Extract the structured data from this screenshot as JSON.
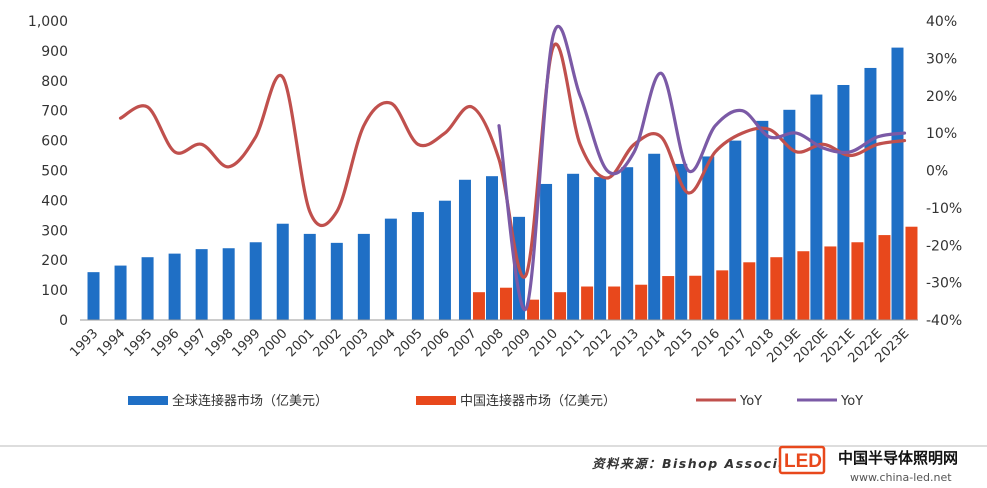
{
  "chart_data": {
    "type": "bar",
    "categories": [
      "1993",
      "1994",
      "1995",
      "1996",
      "1997",
      "1998",
      "1999",
      "2000",
      "2001",
      "2002",
      "2003",
      "2004",
      "2005",
      "2006",
      "2007",
      "2008",
      "2009",
      "2010",
      "2011",
      "2012",
      "2013",
      "2014",
      "2015",
      "2016",
      "2017",
      "2018",
      "2019E",
      "2020E",
      "2021E",
      "2022E",
      "2023E"
    ],
    "series": [
      {
        "name": "全球连接器市场（亿美元）",
        "kind": "bar",
        "axis": "left",
        "color": "#1f6fc5",
        "values": [
          160,
          182,
          210,
          222,
          237,
          240,
          260,
          322,
          288,
          258,
          288,
          339,
          361,
          399,
          469,
          481,
          345,
          455,
          489,
          478,
          511,
          556,
          522,
          547,
          600,
          666,
          703,
          754,
          786,
          843,
          911
        ]
      },
      {
        "name": "中国连接器市场（亿美元）",
        "kind": "bar",
        "axis": "left",
        "color": "#e8481c",
        "values": [
          null,
          null,
          null,
          null,
          null,
          null,
          null,
          null,
          null,
          null,
          null,
          null,
          null,
          null,
          93,
          108,
          68,
          93,
          112,
          112,
          118,
          147,
          148,
          166,
          193,
          210,
          230,
          246,
          260,
          284,
          312
        ]
      },
      {
        "name": "YoY",
        "kind": "line",
        "axis": "right",
        "color": "#c0504d",
        "values": [
          null,
          14,
          17,
          5,
          7,
          1,
          9,
          25,
          -11,
          -11,
          12,
          18,
          7,
          10,
          17,
          3,
          -28,
          33,
          7,
          -2,
          7,
          9,
          -6,
          5,
          10,
          11,
          5,
          7,
          4,
          7,
          8
        ]
      },
      {
        "name": "YoY",
        "kind": "line",
        "axis": "right",
        "color": "#7b5aa6",
        "values": [
          null,
          null,
          null,
          null,
          null,
          null,
          null,
          null,
          null,
          null,
          null,
          null,
          null,
          null,
          null,
          12,
          -37,
          36,
          20,
          0,
          5,
          26,
          0,
          12,
          16,
          9,
          10,
          6,
          5,
          9,
          10
        ]
      }
    ],
    "left_axis": {
      "ylim": [
        0,
        1000
      ],
      "ticks": [
        "0",
        "100",
        "200",
        "300",
        "400",
        "500",
        "600",
        "700",
        "800",
        "900",
        "1,000"
      ]
    },
    "right_axis": {
      "ylim": [
        -40,
        40
      ],
      "ticks": [
        "-40%",
        "-30%",
        "-20%",
        "-10%",
        "0%",
        "10%",
        "20%",
        "30%",
        "40%"
      ]
    },
    "grid": false,
    "legend_position": "bottom"
  },
  "source": "资料来源：Bishop Associates，",
  "watermark": {
    "brand": "中国半导体照明网",
    "url": "www.china-led.net",
    "logo": "LED"
  }
}
